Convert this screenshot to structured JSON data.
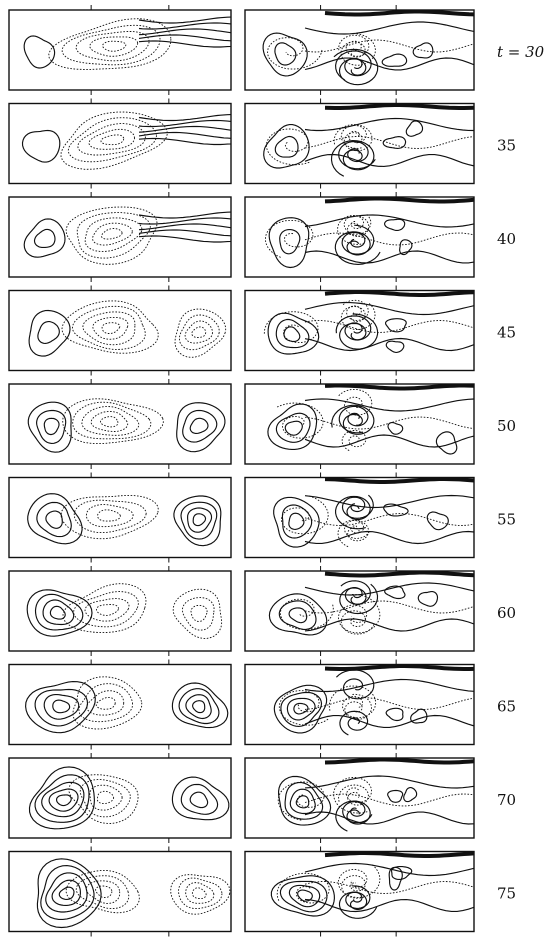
{
  "rows": [
    {
      "label": "t = 30"
    },
    {
      "label": "35"
    },
    {
      "label": "40"
    },
    {
      "label": "45"
    },
    {
      "label": "50"
    },
    {
      "label": "55"
    },
    {
      "label": "60"
    },
    {
      "label": "65"
    },
    {
      "label": "70"
    },
    {
      "label": "75"
    }
  ],
  "left_panel_style": "smooth-contours",
  "right_panel_style": "filamented-contours",
  "line_color": "#111111",
  "background_color": "#ffffff"
}
